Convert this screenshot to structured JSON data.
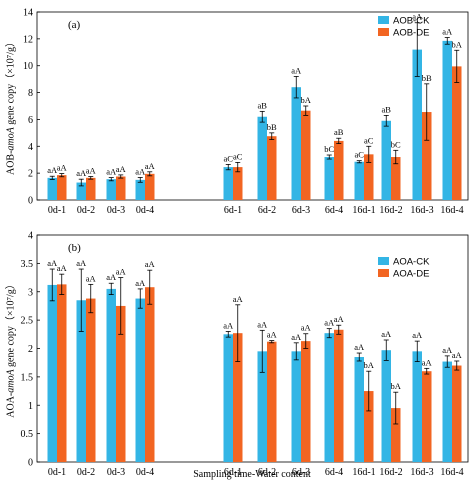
{
  "figure": {
    "xlabel": "Sampling time-Water content"
  },
  "colors": {
    "ck": "#33b5e5",
    "de": "#f26522",
    "error": "#000000"
  },
  "chart_data": [
    {
      "type": "bar",
      "panel_label": "(a)",
      "ylabel_parts": [
        "AOB-",
        "amoA",
        " gene copy（×10⁷/g）"
      ],
      "ylim": [
        0,
        14
      ],
      "yticks": [
        0,
        2,
        4,
        6,
        8,
        10,
        12,
        14
      ],
      "groups": [
        [
          "0d-1",
          "0d-2",
          "0d-3",
          "0d-4"
        ],
        [
          "6d-1",
          "6d-2",
          "6d-3",
          "6d-4"
        ],
        [
          "16d-1",
          "16d-2",
          "16d-3",
          "16d-4"
        ]
      ],
      "legend_position": "top-right",
      "series": [
        {
          "name": "AOB-CK",
          "values": [
            1.65,
            1.3,
            1.55,
            1.5,
            2.45,
            6.2,
            8.4,
            3.2,
            2.85,
            5.9,
            11.2,
            11.85
          ],
          "errors": [
            0.12,
            0.25,
            0.12,
            0.18,
            0.2,
            0.4,
            0.8,
            0.15,
            0.08,
            0.4,
            2.0,
            0.25
          ],
          "labels": [
            "aA",
            "aA",
            "aA",
            "aA",
            "aC",
            "aB",
            "aA",
            "bC",
            "aC",
            "aB",
            "aA",
            "aA"
          ]
        },
        {
          "name": "AOB-DE",
          "values": [
            1.85,
            1.65,
            1.75,
            1.95,
            2.45,
            4.75,
            6.65,
            4.4,
            3.4,
            3.2,
            6.55,
            9.95
          ],
          "errors": [
            0.12,
            0.1,
            0.12,
            0.15,
            0.35,
            0.25,
            0.35,
            0.2,
            0.6,
            0.5,
            2.1,
            1.2
          ],
          "labels": [
            "aA",
            "aA",
            "aA",
            "aA",
            "aC",
            "bB",
            "bA",
            "aB",
            "aC",
            "bC",
            "bB",
            "bA"
          ]
        }
      ]
    },
    {
      "type": "bar",
      "panel_label": "(b)",
      "ylabel_parts": [
        "AOA-",
        "amoA",
        " gene copy（×10⁷/g）"
      ],
      "ylim": [
        0,
        4
      ],
      "yticks": [
        0,
        0.5,
        1,
        1.5,
        2,
        2.5,
        3,
        3.5,
        4
      ],
      "groups": [
        [
          "0d-1",
          "0d-2",
          "0d-3",
          "0d-4"
        ],
        [
          "6d-1",
          "6d-2",
          "6d-3",
          "6d-4"
        ],
        [
          "16d-1",
          "16d-2",
          "16d-3",
          "16d-4"
        ]
      ],
      "legend_position": "top-right",
      "series": [
        {
          "name": "AOA-CK",
          "values": [
            3.12,
            2.85,
            3.05,
            2.88,
            2.25,
            1.95,
            1.95,
            2.27,
            1.85,
            1.97,
            1.95,
            1.77
          ],
          "errors": [
            0.28,
            0.55,
            0.1,
            0.17,
            0.05,
            0.37,
            0.15,
            0.08,
            0.07,
            0.18,
            0.18,
            0.1
          ],
          "labels": [
            "aA",
            "aA",
            "aA",
            "aA",
            "aA",
            "aA",
            "aA",
            "aA",
            "aA",
            "aA",
            "aA",
            "aA"
          ]
        },
        {
          "name": "AOA-DE",
          "values": [
            3.13,
            2.88,
            2.75,
            3.08,
            2.27,
            2.12,
            2.13,
            2.33,
            1.25,
            0.95,
            1.6,
            1.7
          ],
          "errors": [
            0.18,
            0.25,
            0.5,
            0.3,
            0.5,
            0.02,
            0.13,
            0.08,
            0.35,
            0.28,
            0.05,
            0.08
          ],
          "labels": [
            "aA",
            "aA",
            "aA",
            "aA",
            "aA",
            "aA",
            "aA",
            "aA",
            "bA",
            "bA",
            "aA",
            "aA"
          ]
        }
      ]
    }
  ]
}
